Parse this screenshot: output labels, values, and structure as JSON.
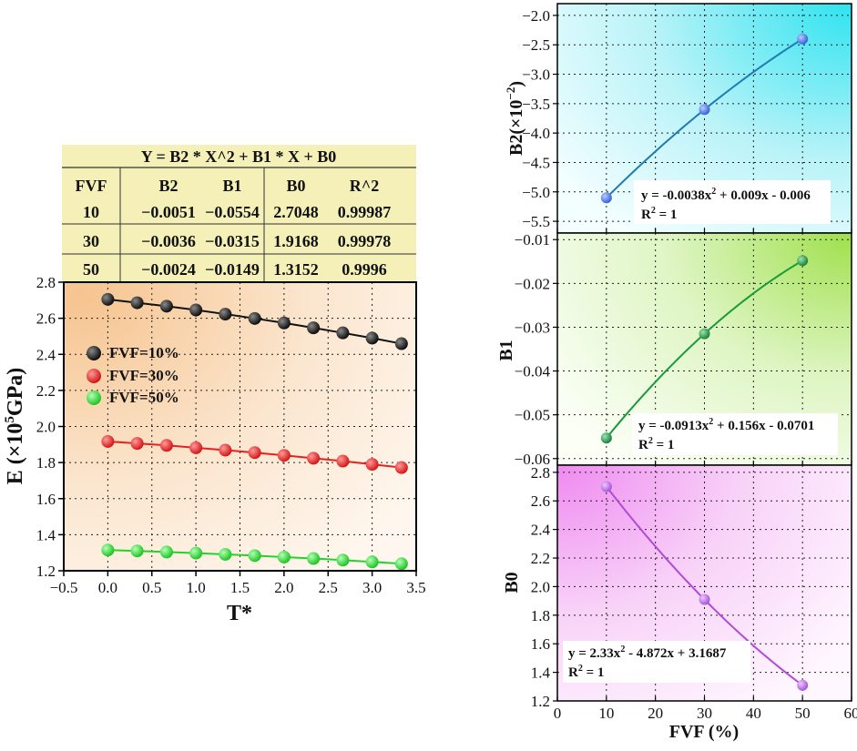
{
  "table": {
    "title": "Y = B2 * X^2 + B1 * X + B0",
    "headers": [
      "FVF",
      "B2",
      "B1",
      "B0",
      "R^2"
    ],
    "rows": [
      [
        "10",
        "−0.0051",
        "−0.0554",
        "2.7048",
        "0.99987"
      ],
      [
        "30",
        "−0.0036",
        "−0.0315",
        "1.9168",
        "0.99978"
      ],
      [
        "50",
        "−0.0024",
        "−0.0149",
        "1.3152",
        "0.9996"
      ]
    ]
  },
  "chart_data": [
    {
      "type": "line",
      "id": "main",
      "xlabel": "T*",
      "ylabel_parts": [
        "E (×10",
        "5",
        "GPa)"
      ],
      "xlim": [
        -0.5,
        3.5
      ],
      "ylim": [
        1.2,
        2.8
      ],
      "xticks": [
        "−0.5",
        "0.0",
        "0.5",
        "1.0",
        "1.5",
        "2.0",
        "2.5",
        "3.0",
        "3.5"
      ],
      "yticks": [
        "1.2",
        "1.4",
        "1.6",
        "1.8",
        "2.0",
        "2.2",
        "2.4",
        "2.6",
        "2.8"
      ],
      "grid": true,
      "legend_placement": "left",
      "x": [
        0,
        0.333,
        0.667,
        1.0,
        1.333,
        1.667,
        2.0,
        2.333,
        2.667,
        3.0,
        3.333
      ],
      "series": [
        {
          "name": "FVF=10%",
          "color": "#111111",
          "y": [
            2.705,
            2.686,
            2.667,
            2.646,
            2.623,
            2.599,
            2.574,
            2.547,
            2.519,
            2.49,
            2.459
          ]
        },
        {
          "name": "FVF=30%",
          "color": "#e8201f",
          "y": [
            1.917,
            1.906,
            1.895,
            1.882,
            1.869,
            1.855,
            1.84,
            1.824,
            1.808,
            1.79,
            1.772
          ]
        },
        {
          "name": "FVF=50%",
          "color": "#22d42a",
          "y": [
            1.315,
            1.31,
            1.304,
            1.298,
            1.291,
            1.284,
            1.276,
            1.268,
            1.259,
            1.249,
            1.239
          ]
        }
      ]
    },
    {
      "type": "line",
      "id": "b2",
      "ylabel_parts": [
        "B2(×10",
        "−2",
        ")"
      ],
      "xlim": [
        0,
        60
      ],
      "ylim": [
        -5.7,
        -1.8
      ],
      "yticks": [
        "−5.5",
        "−5.0",
        "−4.5",
        "−4.0",
        "−3.5",
        "−3.0",
        "−2.5",
        "−2.0"
      ],
      "grid": true,
      "color": "#1f7bb0",
      "x": [
        10,
        30,
        50
      ],
      "y": [
        -5.1,
        -3.6,
        -2.4
      ],
      "equation": "y = -0.0038x",
      "equation_tail": " + 0.009x - 0.006",
      "r2": "R",
      "r2_tail": " = 1"
    },
    {
      "type": "line",
      "id": "b1",
      "ylabel": "B1",
      "xlim": [
        0,
        60
      ],
      "ylim": [
        -0.0615,
        -0.0085
      ],
      "yticks": [
        "−0.06",
        "−0.05",
        "−0.04",
        "−0.03",
        "−0.02",
        "−0.01"
      ],
      "grid": true,
      "color": "#1a9a3a",
      "x": [
        10,
        30,
        50
      ],
      "y": [
        -0.0553,
        -0.0315,
        -0.0148
      ],
      "equation": "y = -0.0913x",
      "equation_tail": " + 0.156x - 0.0701",
      "r2": "R",
      "r2_tail": " = 1"
    },
    {
      "type": "line",
      "id": "b0",
      "ylabel": "B0",
      "xlabel": "FVF (%)",
      "xlim": [
        0,
        60
      ],
      "ylim": [
        1.2,
        2.85
      ],
      "xticks": [
        "0",
        "10",
        "20",
        "30",
        "40",
        "50",
        "60"
      ],
      "yticks": [
        "1.2",
        "1.4",
        "1.6",
        "1.8",
        "2.0",
        "2.2",
        "2.4",
        "2.6",
        "2.8"
      ],
      "grid": true,
      "color": "#b04ad8",
      "x": [
        10,
        30,
        50
      ],
      "y": [
        2.7,
        1.91,
        1.31
      ],
      "equation": "y = 2.33x",
      "equation_tail": " - 4.872x + 3.1687",
      "r2": "R",
      "r2_tail": " = 1"
    }
  ]
}
